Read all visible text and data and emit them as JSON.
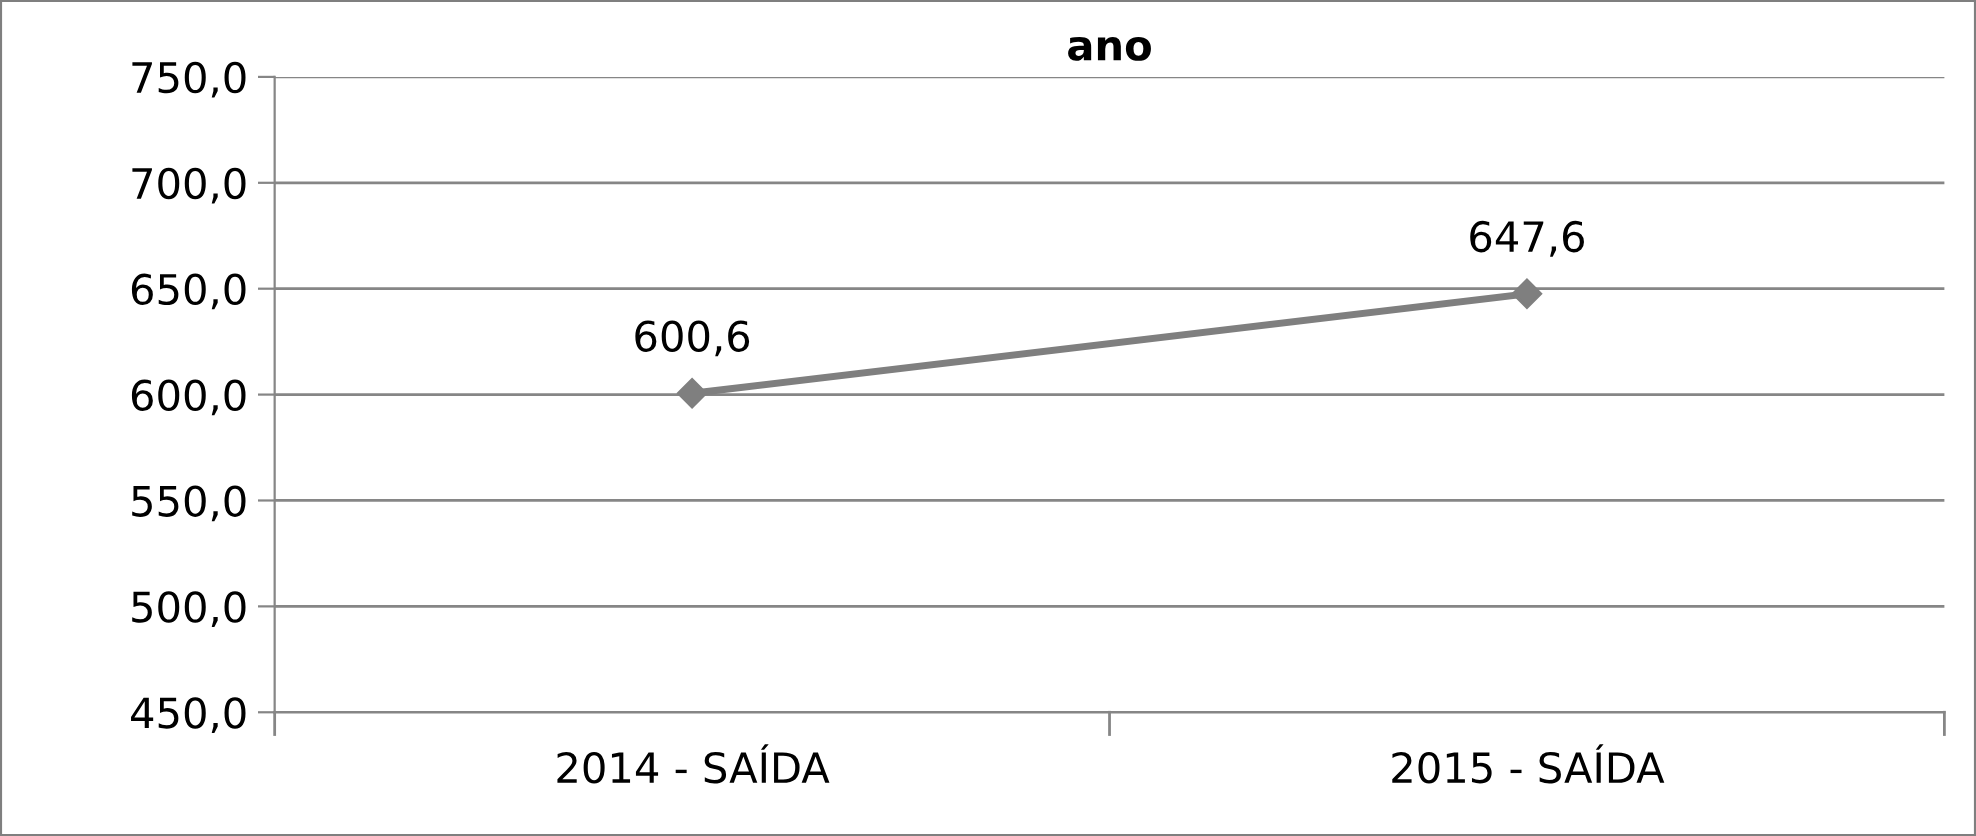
{
  "chart_data": {
    "type": "line",
    "title": "ano",
    "categories": [
      "2014 - SAÍDA",
      "2015 - SAÍDA"
    ],
    "series": [
      {
        "color": "#7f7f7f",
        "values": [
          600.6,
          647.6
        ],
        "value_labels": [
          "600,6",
          "647,6"
        ]
      }
    ],
    "ylim": [
      450,
      750
    ],
    "yticks": [
      {
        "value": 450,
        "label": "450,0"
      },
      {
        "value": 500,
        "label": "500,0"
      },
      {
        "value": 550,
        "label": "550,0"
      },
      {
        "value": 600,
        "label": "600,0"
      },
      {
        "value": 650,
        "label": "650,0"
      },
      {
        "value": 700,
        "label": "700,0"
      },
      {
        "value": 750,
        "label": "750,0"
      }
    ],
    "grid": "y",
    "marker": "diamond",
    "line_style": "solid",
    "legend": false
  }
}
